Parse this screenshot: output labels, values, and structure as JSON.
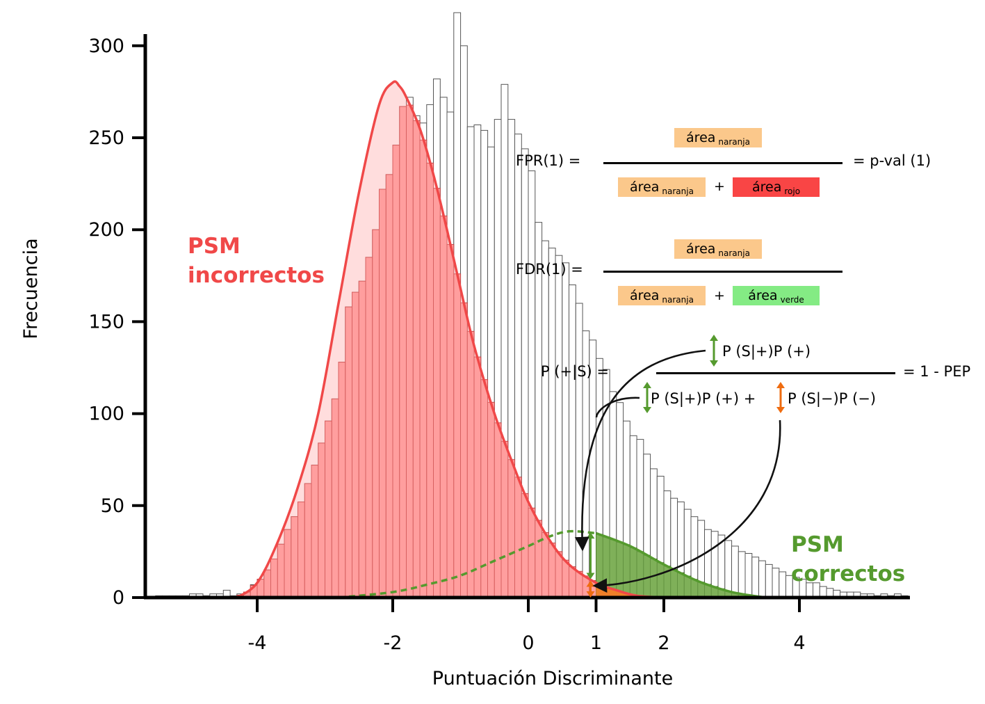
{
  "chart_data": {
    "type": "bar",
    "xlabel": "Puntuación Discriminante",
    "ylabel": "Frecuencia",
    "xlim": [
      -5.9,
      5.6
    ],
    "ylim": [
      0,
      320
    ],
    "xticks": [
      -4,
      -2,
      0,
      1,
      2,
      4
    ],
    "xtick_labels": [
      "-4",
      "-2",
      "0",
      "1",
      "2",
      "4"
    ],
    "yticks": [
      0,
      50,
      100,
      150,
      200,
      250,
      300
    ],
    "ytick_labels": [
      "0",
      "50",
      "100",
      "150",
      "200",
      "250",
      "300"
    ],
    "grid": false,
    "histogram": {
      "bin_width": 0.1,
      "bins": [
        {
          "x": -5.5,
          "y": 1
        },
        {
          "x": -5.4,
          "y": 1
        },
        {
          "x": -5.3,
          "y": 1
        },
        {
          "x": -5.2,
          "y": 1
        },
        {
          "x": -5.1,
          "y": 1
        },
        {
          "x": -5.0,
          "y": 2
        },
        {
          "x": -4.9,
          "y": 2
        },
        {
          "x": -4.8,
          "y": 1
        },
        {
          "x": -4.7,
          "y": 2
        },
        {
          "x": -4.6,
          "y": 2
        },
        {
          "x": -4.5,
          "y": 4
        },
        {
          "x": -4.4,
          "y": 1
        },
        {
          "x": -4.3,
          "y": 2
        },
        {
          "x": -4.2,
          "y": 3
        },
        {
          "x": -4.1,
          "y": 7
        },
        {
          "x": -4.0,
          "y": 10
        },
        {
          "x": -3.9,
          "y": 15
        },
        {
          "x": -3.8,
          "y": 21
        },
        {
          "x": -3.7,
          "y": 29
        },
        {
          "x": -3.6,
          "y": 37
        },
        {
          "x": -3.5,
          "y": 44
        },
        {
          "x": -3.4,
          "y": 52
        },
        {
          "x": -3.3,
          "y": 62
        },
        {
          "x": -3.2,
          "y": 72
        },
        {
          "x": -3.1,
          "y": 84
        },
        {
          "x": -3.0,
          "y": 96
        },
        {
          "x": -2.9,
          "y": 108
        },
        {
          "x": -2.8,
          "y": 128
        },
        {
          "x": -2.7,
          "y": 158
        },
        {
          "x": -2.6,
          "y": 166
        },
        {
          "x": -2.5,
          "y": 172
        },
        {
          "x": -2.4,
          "y": 185
        },
        {
          "x": -2.3,
          "y": 200
        },
        {
          "x": -2.2,
          "y": 222
        },
        {
          "x": -2.1,
          "y": 230
        },
        {
          "x": -2.0,
          "y": 246
        },
        {
          "x": -1.9,
          "y": 267
        },
        {
          "x": -1.8,
          "y": 272
        },
        {
          "x": -1.7,
          "y": 262
        },
        {
          "x": -1.6,
          "y": 258
        },
        {
          "x": -1.5,
          "y": 268
        },
        {
          "x": -1.4,
          "y": 282
        },
        {
          "x": -1.3,
          "y": 272
        },
        {
          "x": -1.2,
          "y": 264
        },
        {
          "x": -1.1,
          "y": 318
        },
        {
          "x": -1.0,
          "y": 300
        },
        {
          "x": -0.9,
          "y": 256
        },
        {
          "x": -0.8,
          "y": 257
        },
        {
          "x": -0.7,
          "y": 254
        },
        {
          "x": -0.6,
          "y": 245
        },
        {
          "x": -0.5,
          "y": 260
        },
        {
          "x": -0.4,
          "y": 279
        },
        {
          "x": -0.3,
          "y": 260
        },
        {
          "x": -0.2,
          "y": 252
        },
        {
          "x": -0.1,
          "y": 244
        },
        {
          "x": 0.0,
          "y": 232
        },
        {
          "x": 0.1,
          "y": 204
        },
        {
          "x": 0.2,
          "y": 194
        },
        {
          "x": 0.3,
          "y": 190
        },
        {
          "x": 0.4,
          "y": 186
        },
        {
          "x": 0.5,
          "y": 182
        },
        {
          "x": 0.6,
          "y": 170
        },
        {
          "x": 0.7,
          "y": 160
        },
        {
          "x": 0.8,
          "y": 145
        },
        {
          "x": 0.9,
          "y": 140
        },
        {
          "x": 1.0,
          "y": 130
        },
        {
          "x": 1.1,
          "y": 124
        },
        {
          "x": 1.2,
          "y": 112
        },
        {
          "x": 1.3,
          "y": 106
        },
        {
          "x": 1.4,
          "y": 96
        },
        {
          "x": 1.5,
          "y": 88
        },
        {
          "x": 1.6,
          "y": 86
        },
        {
          "x": 1.7,
          "y": 78
        },
        {
          "x": 1.8,
          "y": 70
        },
        {
          "x": 1.9,
          "y": 66
        },
        {
          "x": 2.0,
          "y": 58
        },
        {
          "x": 2.1,
          "y": 54
        },
        {
          "x": 2.2,
          "y": 52
        },
        {
          "x": 2.3,
          "y": 48
        },
        {
          "x": 2.4,
          "y": 44
        },
        {
          "x": 2.5,
          "y": 42
        },
        {
          "x": 2.6,
          "y": 37
        },
        {
          "x": 2.7,
          "y": 36
        },
        {
          "x": 2.8,
          "y": 34
        },
        {
          "x": 2.9,
          "y": 31
        },
        {
          "x": 3.0,
          "y": 28
        },
        {
          "x": 3.1,
          "y": 25
        },
        {
          "x": 3.2,
          "y": 24
        },
        {
          "x": 3.3,
          "y": 22
        },
        {
          "x": 3.4,
          "y": 20
        },
        {
          "x": 3.5,
          "y": 18
        },
        {
          "x": 3.6,
          "y": 16
        },
        {
          "x": 3.7,
          "y": 14
        },
        {
          "x": 3.8,
          "y": 12
        },
        {
          "x": 3.9,
          "y": 11
        },
        {
          "x": 4.0,
          "y": 10
        },
        {
          "x": 4.1,
          "y": 8
        },
        {
          "x": 4.2,
          "y": 8
        },
        {
          "x": 4.3,
          "y": 6
        },
        {
          "x": 4.4,
          "y": 5
        },
        {
          "x": 4.5,
          "y": 4
        },
        {
          "x": 4.6,
          "y": 3
        },
        {
          "x": 4.7,
          "y": 3
        },
        {
          "x": 4.8,
          "y": 3
        },
        {
          "x": 4.9,
          "y": 2
        },
        {
          "x": 5.0,
          "y": 2
        },
        {
          "x": 5.1,
          "y": 1
        },
        {
          "x": 5.2,
          "y": 2
        },
        {
          "x": 5.3,
          "y": 1
        },
        {
          "x": 5.4,
          "y": 2
        },
        {
          "x": 5.5,
          "y": 1
        }
      ]
    },
    "red_curve": {
      "x": [
        -4.3,
        -4.0,
        -3.7,
        -3.4,
        -3.1,
        -2.8,
        -2.5,
        -2.2,
        -2.0,
        -1.9,
        -1.8,
        -1.6,
        -1.4,
        -1.2,
        -1.0,
        -0.8,
        -0.5,
        -0.2,
        0.0,
        0.3,
        0.6,
        1.0,
        1.3,
        1.6,
        2.0
      ],
      "y": [
        0,
        8,
        30,
        60,
        100,
        160,
        220,
        268,
        280,
        278,
        272,
        255,
        230,
        200,
        168,
        137,
        100,
        70,
        52,
        32,
        18,
        8,
        4,
        1,
        0
      ]
    },
    "green_curve": {
      "x": [
        -2.8,
        -2.0,
        -1.5,
        -1.0,
        -0.5,
        0.0,
        0.3,
        0.6,
        1.0,
        1.5,
        2.0,
        2.5,
        3.0,
        3.5
      ],
      "y": [
        0,
        3,
        7,
        12,
        20,
        28,
        33,
        36,
        35,
        28,
        18,
        9,
        3,
        0
      ],
      "dashed_until_x": 1.0
    },
    "threshold_x": 1.0,
    "colors": {
      "red": "#f04848",
      "red_fill": "#ff9f9f",
      "green": "#559a2e",
      "green_fill": "#7fb05a",
      "orange_area": "#f97b22",
      "orange_box": "#fbc88b",
      "red_box": "#f94545",
      "green_box": "#84eb84",
      "orange_arrow": "#ef6c10"
    }
  },
  "labels": {
    "psm_incorrectos": [
      "PSM",
      "incorrectos"
    ],
    "psm_correctos": [
      "PSM",
      "correctos"
    ]
  },
  "formulas": {
    "fpr": {
      "lhs": "FPR(1) =",
      "num": {
        "word": "área",
        "sub": "naranja"
      },
      "den1": {
        "word": "área",
        "sub": "naranja"
      },
      "plus": "+",
      "den2": {
        "word": "área",
        "sub": "rojo"
      },
      "rhs": "= p-val (1)"
    },
    "fdr": {
      "lhs": "FDR(1) =",
      "num": {
        "word": "área",
        "sub": "naranja"
      },
      "den1": {
        "word": "área",
        "sub": "naranja"
      },
      "plus": "+",
      "den2": {
        "word": "área",
        "sub": "verde"
      }
    },
    "bayes": {
      "lhs": "P (+|S) =",
      "num": "P (S|+)P (+)",
      "den_a": "P (S|+)P (+) +",
      "den_b": "P (S|−)P (−)",
      "rhs": "= 1 - PEP"
    }
  }
}
